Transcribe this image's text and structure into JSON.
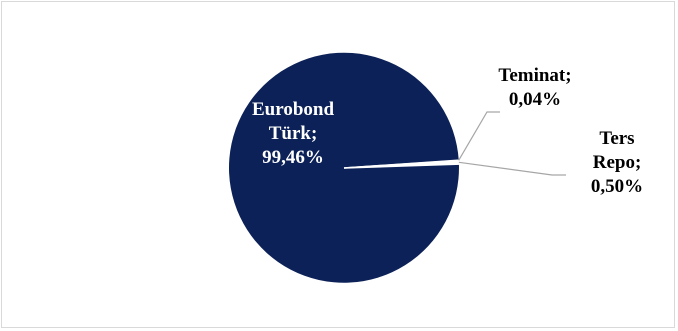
{
  "chart_data": {
    "type": "pie",
    "title": "",
    "slices": [
      {
        "label_lines": [
          "Eurobond",
          "Türk;",
          "99,46%"
        ],
        "name": "Eurobond Türk",
        "value": 99.46,
        "color": "#0c2157",
        "label_color": "#ffffff"
      },
      {
        "label_lines": [
          "Teminat;",
          "0,04%"
        ],
        "name": "Teminat",
        "value": 0.04,
        "color": "#ffffff",
        "label_color": "#000000"
      },
      {
        "label_lines": [
          "Ters",
          "Repo;",
          "0,50%"
        ],
        "name": "Ters Repo",
        "value": 0.5,
        "color": "#ffffff",
        "label_color": "#000000"
      }
    ],
    "leader_line_color": "#a6a6a6",
    "legend": "none"
  }
}
